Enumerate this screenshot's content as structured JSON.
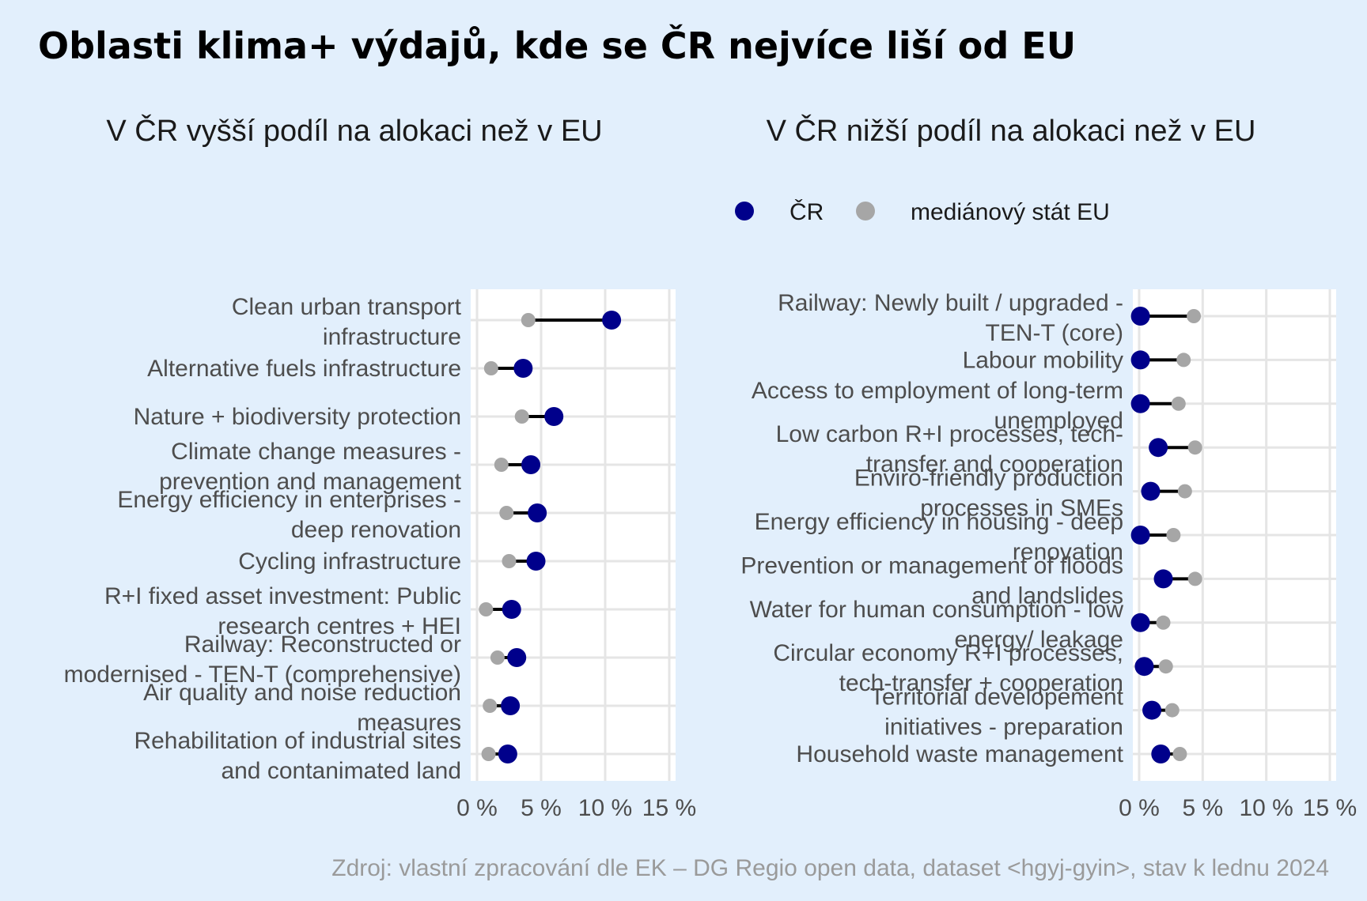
{
  "title": "Oblasti klima+ výdajů, kde se ČR nejvíce liší od EU",
  "source": "Zdroj: vlastní zpracování dle EK – DG Regio open data, dataset <hgyj-gyin>, stav k lednu 2024",
  "colors": {
    "background": "#e2effc",
    "cz": "#00008b",
    "eu": "#a6a6a6",
    "segment": "#000000",
    "panel": "#ffffff",
    "grid": "#e5e5e5"
  },
  "legend": {
    "position": "top",
    "items": [
      {
        "label": "ČR",
        "series": "cz"
      },
      {
        "label": "mediánový stát EU",
        "series": "eu"
      }
    ]
  },
  "chart_data": [
    {
      "type": "dumbbell",
      "subtitle": "V ČR vyšší podíl na alokaci než v EU",
      "x_ticks": [
        "0 %",
        "5 %",
        "10 %",
        "15 %"
      ],
      "xlim": [
        0,
        15
      ],
      "grid": true,
      "categories": [
        [
          "Clean urban transport",
          "infrastructure"
        ],
        [
          "Alternative fuels infrastructure"
        ],
        [
          "Nature + biodiversity protection"
        ],
        [
          "Climate change measures -",
          "prevention and management"
        ],
        [
          "Energy efficiency in enterprises -",
          "deep renovation"
        ],
        [
          "Cycling infrastructure"
        ],
        [
          "R+I fixed asset investment: Public",
          "research centres + HEI"
        ],
        [
          "Railway: Reconstructed or",
          "modernised - TEN-T (comprehensive)"
        ],
        [
          "Air quality and noise reduction",
          "measures"
        ],
        [
          "Rehabilitation of industrial sites",
          "and contanimated land"
        ]
      ],
      "series": [
        {
          "name": "ČR",
          "key": "cz",
          "values": [
            10.5,
            3.6,
            6.0,
            4.2,
            4.7,
            4.6,
            2.7,
            3.1,
            2.6,
            2.4
          ]
        },
        {
          "name": "mediánový stát EU",
          "key": "eu",
          "values": [
            4.0,
            1.1,
            3.5,
            1.9,
            2.3,
            2.5,
            0.7,
            1.6,
            1.0,
            0.9
          ]
        }
      ]
    },
    {
      "type": "dumbbell",
      "subtitle": "V ČR nižší podíl na alokaci než v EU",
      "x_ticks": [
        "0 %",
        "5 %",
        "10 %",
        "15 %"
      ],
      "xlim": [
        0,
        15
      ],
      "grid": true,
      "categories": [
        [
          "Railway: Newly built / upgraded -",
          "TEN-T (core)"
        ],
        [
          "Labour mobility"
        ],
        [
          "Access to employment of long-term",
          "unemployed"
        ],
        [
          "Low carbon R+I processes, tech-",
          "transfer and cooperation"
        ],
        [
          "Enviro-friendly production",
          "processes in SMEs"
        ],
        [
          "Energy efficiency in housing - deep",
          "renovation"
        ],
        [
          "Prevention or management of floods",
          "and landslides"
        ],
        [
          "Water for human consumption - low",
          "energy/ leakage"
        ],
        [
          "Circular economy R+I processes,",
          "tech-transfer + cooperation"
        ],
        [
          "Territorial developement",
          "initiatives - preparation"
        ],
        [
          "Household waste management"
        ]
      ],
      "series": [
        {
          "name": "ČR",
          "key": "cz",
          "values": [
            0.1,
            0.1,
            0.1,
            1.5,
            0.9,
            0.1,
            1.9,
            0.1,
            0.4,
            1.0,
            1.7
          ]
        },
        {
          "name": "mediánový stát EU",
          "key": "eu",
          "values": [
            4.3,
            3.5,
            3.1,
            4.4,
            3.6,
            2.7,
            4.4,
            1.9,
            2.1,
            2.6,
            3.2
          ]
        }
      ]
    }
  ]
}
